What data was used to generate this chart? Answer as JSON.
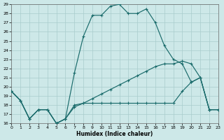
{
  "xlabel": "Humidex (Indice chaleur)",
  "xlim": [
    0,
    23
  ],
  "ylim": [
    16,
    29
  ],
  "xticks": [
    0,
    1,
    2,
    3,
    4,
    5,
    6,
    7,
    8,
    9,
    10,
    11,
    12,
    13,
    14,
    15,
    16,
    17,
    18,
    19,
    20,
    21,
    22,
    23
  ],
  "yticks": [
    16,
    17,
    18,
    19,
    20,
    21,
    22,
    23,
    24,
    25,
    26,
    27,
    28,
    29
  ],
  "bg_color": "#cde8e8",
  "grid_color": "#a8cccc",
  "line_color": "#1a6b6b",
  "curve1_x": [
    0,
    1,
    2,
    3,
    4,
    5,
    6,
    7,
    8,
    9,
    10,
    11,
    12,
    13,
    14,
    15,
    16,
    17,
    18,
    19,
    20,
    21,
    22,
    23
  ],
  "curve1_y": [
    19.5,
    18.5,
    16.5,
    17.5,
    17.5,
    16.0,
    16.5,
    21.5,
    25.5,
    27.8,
    27.8,
    28.8,
    29.0,
    28.0,
    28.0,
    28.5,
    27.0,
    24.5,
    23.0,
    22.5,
    20.5,
    21.0,
    17.5,
    17.5
  ],
  "curve2_x": [
    0,
    1,
    2,
    3,
    4,
    5,
    6,
    7,
    8,
    9,
    10,
    11,
    12,
    13,
    14,
    15,
    16,
    17,
    18,
    19,
    20,
    21,
    22,
    23
  ],
  "curve2_y": [
    19.5,
    18.5,
    16.5,
    17.5,
    17.5,
    16.0,
    16.5,
    18.0,
    18.2,
    18.2,
    18.2,
    18.2,
    18.2,
    18.2,
    18.2,
    18.2,
    18.2,
    18.2,
    18.2,
    19.5,
    20.5,
    21.0,
    17.5,
    17.5
  ],
  "curve3_x": [
    0,
    1,
    2,
    3,
    4,
    5,
    6,
    7,
    8,
    9,
    10,
    11,
    12,
    13,
    14,
    15,
    16,
    17,
    18,
    19,
    20,
    21,
    22,
    23
  ],
  "curve3_y": [
    19.5,
    18.5,
    16.5,
    17.5,
    17.5,
    16.0,
    16.5,
    17.8,
    18.2,
    18.7,
    19.2,
    19.7,
    20.2,
    20.7,
    21.2,
    21.7,
    22.2,
    22.5,
    22.5,
    22.8,
    22.5,
    21.0,
    17.5,
    17.5
  ]
}
